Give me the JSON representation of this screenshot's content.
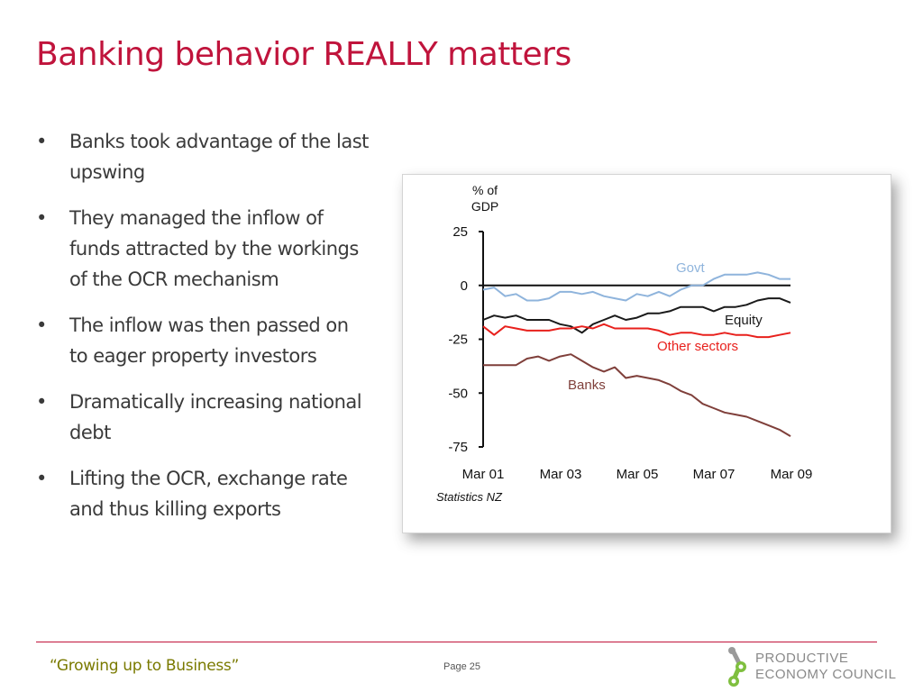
{
  "slide": {
    "title": "Banking behavior REALLY matters",
    "bullets": [
      "Banks took  advantage of the last upswing",
      "They managed the inflow of funds attracted by the workings of the OCR mechanism",
      "The inflow was then passed on to eager property investors",
      "Dramatically increasing national debt",
      "Lifting the OCR, exchange rate and thus killing exports"
    ],
    "bullet_char": "•"
  },
  "footer": {
    "quote": "“Growing up to Business”",
    "page": "Page 25",
    "logo_lines": [
      "PRODUCTIVE",
      "ECONOMY COUNCIL"
    ]
  },
  "colors": {
    "title": "#c0143c",
    "footer_quote": "#7a7a00",
    "govt": "#8fb4dc",
    "equity": "#1a1a1a",
    "other_sectors": "#e8201c",
    "banks": "#7f3f3a"
  },
  "chart_data": {
    "type": "line",
    "ylabel": "% of GDP",
    "source": "Statistics NZ",
    "ylim": [
      -75,
      25
    ],
    "yticks": [
      25,
      0,
      -25,
      -50,
      -75
    ],
    "xticks": [
      "Mar 01",
      "Mar 03",
      "Mar 05",
      "Mar 07",
      "Mar 09"
    ],
    "x_start": "Mar 01",
    "x_end": "Mar 09",
    "grid": false,
    "series": [
      {
        "name": "Govt",
        "color": "#8fb4dc",
        "values": [
          -2,
          -1,
          -5,
          -4,
          -7,
          -7,
          -6,
          -3,
          -3,
          -4,
          -3,
          -5,
          -6,
          -7,
          -4,
          -5,
          -3,
          -5,
          -2,
          0,
          0,
          3,
          5,
          5,
          5,
          6,
          5,
          3,
          3
        ]
      },
      {
        "name": "Equity",
        "color": "#1a1a1a",
        "values": [
          -16,
          -14,
          -15,
          -14,
          -16,
          -16,
          -16,
          -18,
          -19,
          -22,
          -18,
          -16,
          -14,
          -16,
          -15,
          -13,
          -13,
          -12,
          -10,
          -10,
          -10,
          -12,
          -10,
          -10,
          -9,
          -7,
          -6,
          -6,
          -8
        ]
      },
      {
        "name": "Other sectors",
        "color": "#e8201c",
        "values": [
          -19,
          -23,
          -19,
          -20,
          -21,
          -21,
          -21,
          -20,
          -20,
          -19,
          -20,
          -18,
          -20,
          -20,
          -20,
          -20,
          -21,
          -23,
          -22,
          -22,
          -23,
          -23,
          -22,
          -23,
          -23,
          -24,
          -24,
          -23,
          -22
        ]
      },
      {
        "name": "Banks",
        "color": "#7f3f3a",
        "values": [
          -37,
          -37,
          -37,
          -37,
          -34,
          -33,
          -35,
          -33,
          -32,
          -35,
          -38,
          -40,
          -38,
          -43,
          -42,
          -43,
          -44,
          -46,
          -49,
          -51,
          -55,
          -57,
          -59,
          -60,
          -61,
          -63,
          -65,
          -67,
          -70
        ]
      }
    ]
  }
}
